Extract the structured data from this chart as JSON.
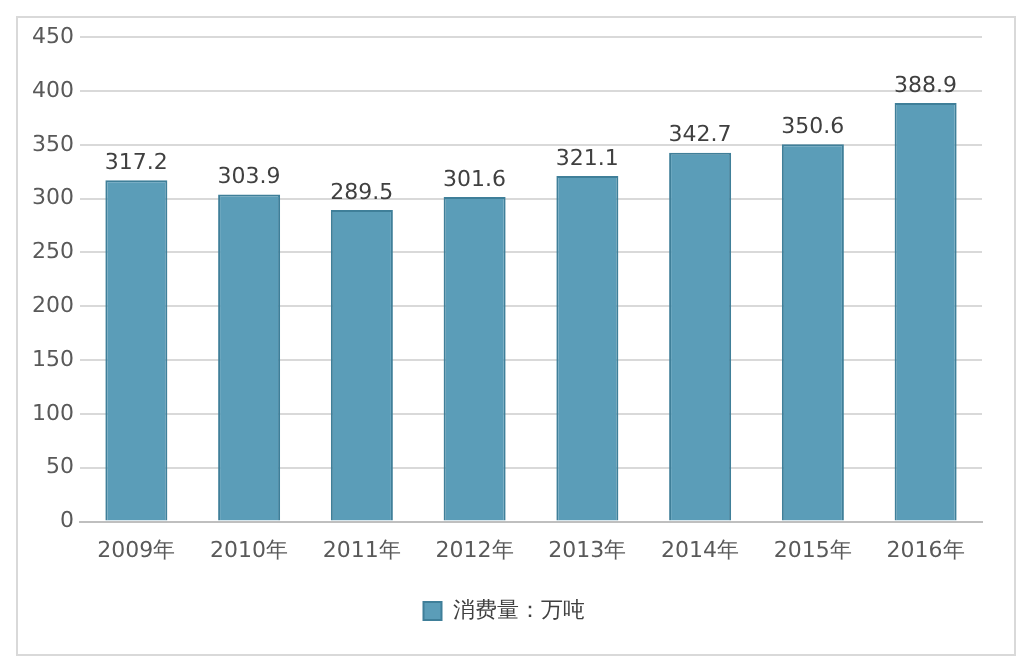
{
  "chart_data": {
    "type": "bar",
    "categories": [
      "2009年",
      "2010年",
      "2011年",
      "2012年",
      "2013年",
      "2014年",
      "2015年",
      "2016年"
    ],
    "series": [
      {
        "name": "消费量：万吨",
        "color": "#5b9db8",
        "values": [
          317.2,
          303.9,
          289.5,
          301.6,
          321.1,
          342.7,
          350.6,
          388.9
        ]
      }
    ],
    "ylim": [
      0,
      450
    ],
    "yticks": [
      0,
      50,
      100,
      150,
      200,
      250,
      300,
      350,
      400,
      450
    ],
    "grid": "y",
    "legend": "bottom",
    "data_labels": true
  }
}
